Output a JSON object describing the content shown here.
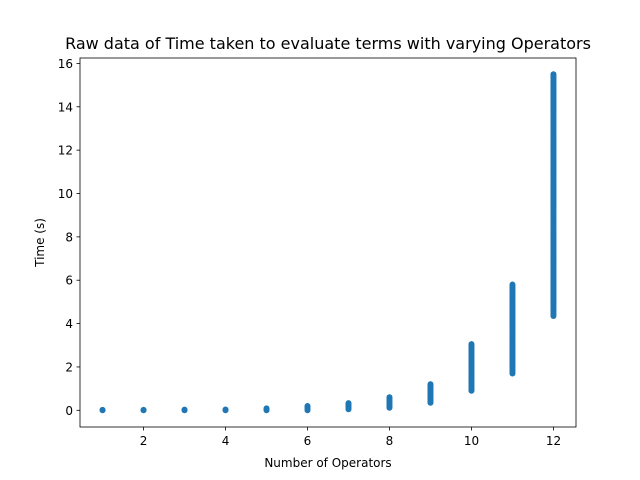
{
  "chart_data": {
    "type": "scatter",
    "title": "Raw data of Time taken to evaluate terms with varying Operators",
    "xlabel": "Number of Operators",
    "ylabel": "Time (s)",
    "xlim": [
      0.45,
      12.55
    ],
    "ylim": [
      -0.77,
      16.25
    ],
    "xticks": [
      2,
      4,
      6,
      8,
      10,
      12
    ],
    "yticks": [
      0,
      2,
      4,
      6,
      8,
      10,
      12,
      14,
      16
    ],
    "grid": false,
    "marker_color": "#1f77b4",
    "series": [
      {
        "points_summary": [
          {
            "x": 1,
            "min": 0.0,
            "max": 0.02
          },
          {
            "x": 2,
            "min": 0.0,
            "max": 0.02
          },
          {
            "x": 3,
            "min": 0.0,
            "max": 0.03
          },
          {
            "x": 4,
            "min": 0.0,
            "max": 0.04
          },
          {
            "x": 5,
            "min": 0.0,
            "max": 0.09
          },
          {
            "x": 6,
            "min": 0.0,
            "max": 0.2
          },
          {
            "x": 7,
            "min": 0.05,
            "max": 0.33
          },
          {
            "x": 8,
            "min": 0.12,
            "max": 0.6
          },
          {
            "x": 9,
            "min": 0.35,
            "max": 1.2
          },
          {
            "x": 10,
            "min": 0.9,
            "max": 3.05
          },
          {
            "x": 11,
            "min": 1.7,
            "max": 5.8
          },
          {
            "x": 12,
            "min": 4.35,
            "max": 15.5
          }
        ]
      }
    ]
  }
}
